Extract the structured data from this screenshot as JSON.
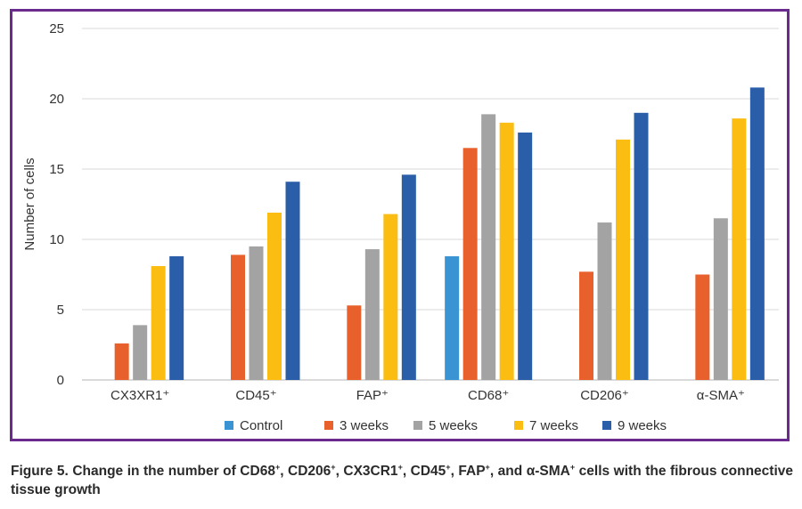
{
  "chart_data": {
    "type": "bar",
    "ylabel": "Number of cells",
    "xlabel": "",
    "ylim": [
      0,
      25
    ],
    "yticks": [
      0,
      5,
      10,
      15,
      20,
      25
    ],
    "grid": true,
    "legend_position": "bottom",
    "categories": [
      "CX3XR1⁺",
      "CD45⁺",
      "FAP⁺",
      "CD68⁺",
      "CD206⁺",
      "α-SMA⁺"
    ],
    "series": [
      {
        "name": "Control",
        "color": "#3a94d4",
        "values": [
          null,
          null,
          null,
          8.8,
          null,
          null
        ]
      },
      {
        "name": "3 weeks",
        "color": "#e8612c",
        "values": [
          2.6,
          8.9,
          5.3,
          16.5,
          7.7,
          7.5
        ]
      },
      {
        "name": "5 weeks",
        "color": "#a3a3a3",
        "values": [
          3.9,
          9.5,
          9.3,
          18.9,
          11.2,
          11.5
        ]
      },
      {
        "name": "7 weeks",
        "color": "#fbbd12",
        "values": [
          8.1,
          11.9,
          11.8,
          18.3,
          17.1,
          18.6
        ]
      },
      {
        "name": "9 weeks",
        "color": "#2a5ea9",
        "values": [
          8.8,
          14.1,
          14.6,
          17.6,
          19.0,
          20.8
        ]
      }
    ]
  },
  "caption": {
    "prefix": "Figure 5. Change in the number of CD68",
    "p2": ", CD206",
    "p3": ", CX3CR1",
    "p4": ", CD45",
    "p5": ", FAP",
    "p6": ", and α-SMA",
    "suffix": " cells with the fibrous connective tissue growth",
    "sup": "+"
  }
}
